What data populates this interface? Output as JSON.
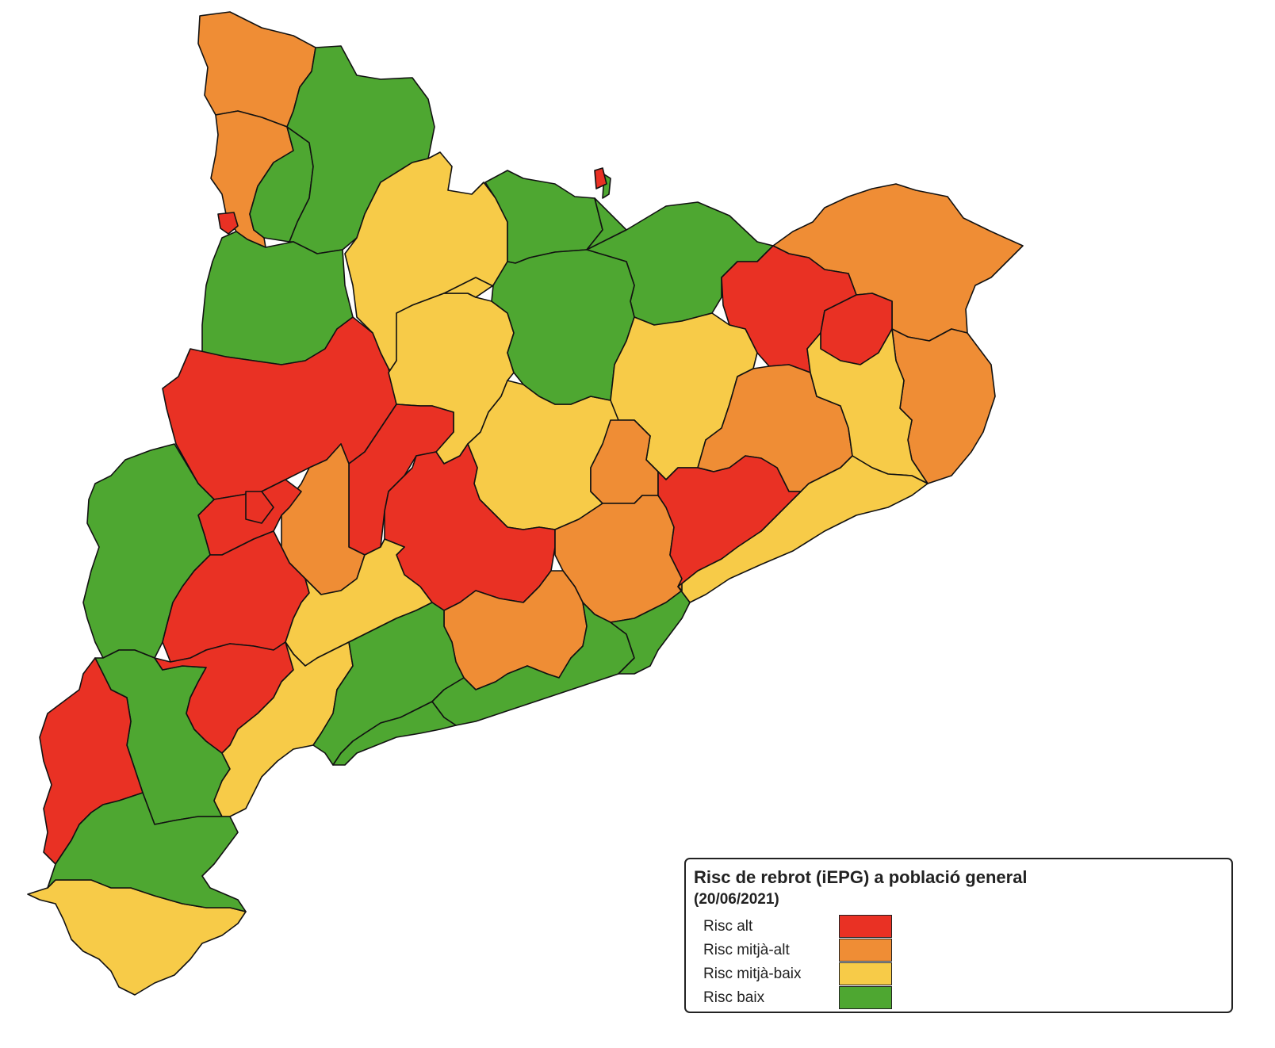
{
  "map": {
    "regions": [
      {
        "id": "r01",
        "risk": 2
      },
      {
        "id": "r02",
        "risk": 2
      },
      {
        "id": "r03",
        "risk": 4
      },
      {
        "id": "r04",
        "risk": 4
      },
      {
        "id": "r05",
        "risk": 4
      },
      {
        "id": "r06",
        "risk": 3
      },
      {
        "id": "r07",
        "risk": 4
      },
      {
        "id": "r08",
        "risk": 4
      },
      {
        "id": "r09",
        "risk": 4
      },
      {
        "id": "r10",
        "risk": 2
      },
      {
        "id": "r11",
        "risk": 1
      },
      {
        "id": "r12",
        "risk": 1
      },
      {
        "id": "r13",
        "risk": 2
      },
      {
        "id": "r14",
        "risk": 1
      },
      {
        "id": "r15",
        "risk": 3
      },
      {
        "id": "r16",
        "risk": 3
      },
      {
        "id": "r17",
        "risk": 4
      },
      {
        "id": "r18",
        "risk": 1
      },
      {
        "id": "r19",
        "risk": 3
      },
      {
        "id": "r20",
        "risk": 2
      },
      {
        "id": "r21",
        "risk": 2
      },
      {
        "id": "r22",
        "risk": 3
      },
      {
        "id": "r23",
        "risk": 3
      },
      {
        "id": "r24",
        "risk": 2
      },
      {
        "id": "r25",
        "risk": 1
      },
      {
        "id": "r26",
        "risk": 4
      },
      {
        "id": "r27",
        "risk": 4
      },
      {
        "id": "r28",
        "risk": 1
      },
      {
        "id": "r29",
        "risk": 2
      },
      {
        "id": "r30",
        "risk": 1
      },
      {
        "id": "r31",
        "risk": 1
      },
      {
        "id": "r32",
        "risk": 3
      },
      {
        "id": "r33",
        "risk": 1
      },
      {
        "id": "r34",
        "risk": 1
      },
      {
        "id": "r35",
        "risk": 2
      },
      {
        "id": "r36",
        "risk": 2
      },
      {
        "id": "r37",
        "risk": 1
      },
      {
        "id": "r38",
        "risk": 1
      },
      {
        "id": "r39",
        "risk": 3
      },
      {
        "id": "r40",
        "risk": 4
      },
      {
        "id": "r41",
        "risk": 3
      },
      {
        "id": "r42",
        "risk": 4
      },
      {
        "id": "r43",
        "risk": 4
      },
      {
        "id": "r44",
        "risk": 4
      },
      {
        "id": "r45",
        "risk": 4
      },
      {
        "id": "r46",
        "risk": 1
      },
      {
        "id": "r47",
        "risk": 3
      }
    ]
  },
  "legend": {
    "title": "Risc de rebrot (iEPG) a població general",
    "subtitle": "(20/06/2021)",
    "items": [
      {
        "label": "Risc alt",
        "color": "#e93124",
        "risk": 1
      },
      {
        "label": "Risc mitjà-alt",
        "color": "#ef8d35",
        "risk": 2
      },
      {
        "label": "Risc mitjà-baix",
        "color": "#f7cb48",
        "risk": 3
      },
      {
        "label": "Risc baix",
        "color": "#4ea731",
        "risk": 4
      }
    ]
  }
}
